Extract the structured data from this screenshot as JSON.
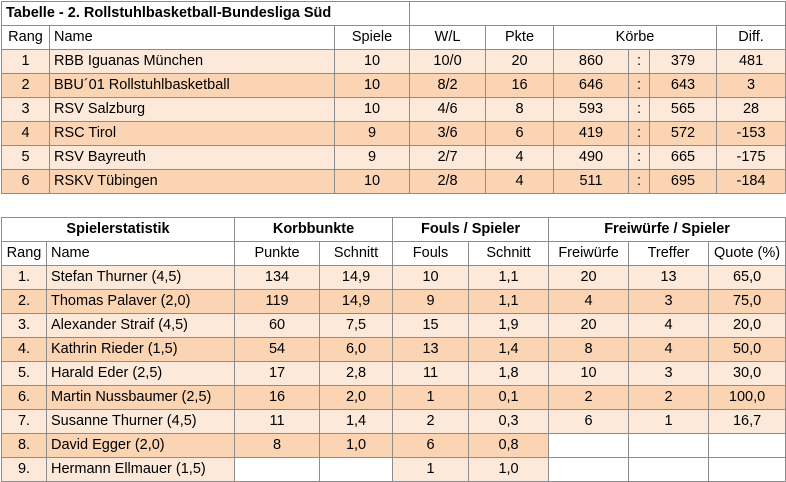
{
  "league": {
    "title": "Tabelle - 2. Rollstuhlbasketball-Bundesliga Süd",
    "headers": {
      "rank": "Rang",
      "name": "Name",
      "games": "Spiele",
      "wl": "W/L",
      "points": "Pkte",
      "baskets": "Körbe",
      "diff": "Diff."
    },
    "separator": ":",
    "rows": [
      {
        "rank": "1",
        "name": "RBB Iguanas München",
        "games": "10",
        "wl": "10/0",
        "points": "20",
        "for": "860",
        "against": "379",
        "diff": "481"
      },
      {
        "rank": "2",
        "name": "BBU´01 Rollstuhlbasketball",
        "games": "10",
        "wl": "8/2",
        "points": "16",
        "for": "646",
        "against": "643",
        "diff": "3"
      },
      {
        "rank": "3",
        "name": "RSV Salzburg",
        "games": "10",
        "wl": "4/6",
        "points": "8",
        "for": "593",
        "against": "565",
        "diff": "28"
      },
      {
        "rank": "4",
        "name": "RSC Tirol",
        "games": "9",
        "wl": "3/6",
        "points": "6",
        "for": "419",
        "against": "572",
        "diff": "-153"
      },
      {
        "rank": "5",
        "name": "RSV Bayreuth",
        "games": "9",
        "wl": "2/7",
        "points": "4",
        "for": "490",
        "against": "665",
        "diff": "-175"
      },
      {
        "rank": "6",
        "name": "RSKV Tübingen",
        "games": "10",
        "wl": "2/8",
        "points": "4",
        "for": "511",
        "against": "695",
        "diff": "-184"
      }
    ]
  },
  "players": {
    "groups": {
      "stats": "Spielerstatistik",
      "points": "Korbbunkte",
      "fouls": "Fouls / Spieler",
      "freethrows": "Freiwürfe / Spieler"
    },
    "headers": {
      "rank": "Rang",
      "name": "Name",
      "points": "Punkte",
      "avg": "Schnitt",
      "fouls": "Fouls",
      "foul_avg": "Schnitt",
      "ft": "Freiwürfe",
      "hits": "Treffer",
      "quote": "Quote (%)"
    },
    "rows": [
      {
        "rank": "1.",
        "name": "Stefan Thurner (4,5)",
        "points": "134",
        "avg": "14,9",
        "fouls": "10",
        "foul_avg": "1,1",
        "ft": "20",
        "hits": "13",
        "quote": "65,0"
      },
      {
        "rank": "2.",
        "name": "Thomas Palaver (2,0)",
        "points": "119",
        "avg": "14,9",
        "fouls": "9",
        "foul_avg": "1,1",
        "ft": "4",
        "hits": "3",
        "quote": "75,0"
      },
      {
        "rank": "3.",
        "name": "Alexander Straif (4,5)",
        "points": "60",
        "avg": "7,5",
        "fouls": "15",
        "foul_avg": "1,9",
        "ft": "20",
        "hits": "4",
        "quote": "20,0"
      },
      {
        "rank": "4.",
        "name": "Kathrin Rieder (1,5)",
        "points": "54",
        "avg": "6,0",
        "fouls": "13",
        "foul_avg": "1,4",
        "ft": "8",
        "hits": "4",
        "quote": "50,0"
      },
      {
        "rank": "5.",
        "name": "Harald Eder (2,5)",
        "points": "17",
        "avg": "2,8",
        "fouls": "11",
        "foul_avg": "1,8",
        "ft": "10",
        "hits": "3",
        "quote": "30,0"
      },
      {
        "rank": "6.",
        "name": "Martin Nussbaumer (2,5)",
        "points": "16",
        "avg": "2,0",
        "fouls": "1",
        "foul_avg": "0,1",
        "ft": "2",
        "hits": "2",
        "quote": "100,0"
      },
      {
        "rank": "7.",
        "name": "Susanne Thurner (4,5)",
        "points": "11",
        "avg": "1,4",
        "fouls": "2",
        "foul_avg": "0,3",
        "ft": "6",
        "hits": "1",
        "quote": "16,7"
      },
      {
        "rank": "8.",
        "name": "David Egger (2,0)",
        "points": "8",
        "avg": "1,0",
        "fouls": "6",
        "foul_avg": "0,8",
        "ft": "",
        "hits": "",
        "quote": ""
      },
      {
        "rank": "9.",
        "name": "Hermann Ellmauer (1,5)",
        "points": "",
        "avg": "",
        "fouls": "1",
        "foul_avg": "1,0",
        "ft": "",
        "hits": "",
        "quote": ""
      }
    ]
  }
}
